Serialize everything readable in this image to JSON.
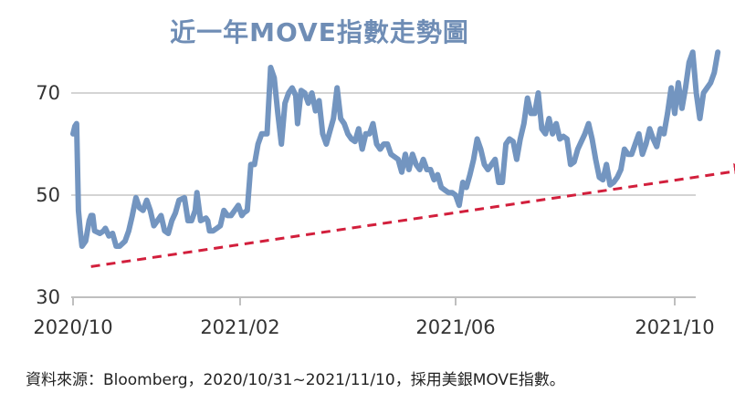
{
  "chart_data": {
    "type": "line",
    "title": "近一年MOVE指數走勢圖",
    "ylim": [
      30,
      78
    ],
    "yticks": [
      30,
      50,
      70
    ],
    "xticks": [
      {
        "label": "2020/10",
        "date": "2020-10-31"
      },
      {
        "label": "2021/02",
        "date": "2021-02-01"
      },
      {
        "label": "2021/06",
        "date": "2021-06-01"
      },
      {
        "label": "2021/10",
        "date": "2021-10-01"
      }
    ],
    "grid": "horizontal",
    "series": [
      {
        "color": "#7395c0",
        "values": [
          [
            "2020-10-31",
            62
          ],
          [
            "2020-11-01",
            63.5
          ],
          [
            "2020-11-02",
            64
          ],
          [
            "2020-11-03",
            47
          ],
          [
            "2020-11-04",
            43
          ],
          [
            "2020-11-05",
            40
          ],
          [
            "2020-11-07",
            41
          ],
          [
            "2020-11-09",
            45
          ],
          [
            "2020-11-10",
            46
          ],
          [
            "2020-11-11",
            46
          ],
          [
            "2020-11-12",
            43
          ],
          [
            "2020-11-15",
            42.5
          ],
          [
            "2020-11-17",
            43
          ],
          [
            "2020-11-18",
            43.5
          ],
          [
            "2020-11-20",
            42
          ],
          [
            "2020-11-22",
            42.5
          ],
          [
            "2020-11-24",
            40
          ],
          [
            "2020-11-26",
            40
          ],
          [
            "2020-11-29",
            41
          ],
          [
            "2020-12-01",
            43
          ],
          [
            "2020-12-03",
            46
          ],
          [
            "2020-12-05",
            49.5
          ],
          [
            "2020-12-07",
            47.5
          ],
          [
            "2020-12-09",
            47
          ],
          [
            "2020-12-11",
            49
          ],
          [
            "2020-12-13",
            47
          ],
          [
            "2020-12-15",
            44
          ],
          [
            "2020-12-17",
            45
          ],
          [
            "2020-12-19",
            46
          ],
          [
            "2020-12-21",
            43
          ],
          [
            "2020-12-23",
            42.5
          ],
          [
            "2020-12-25",
            45
          ],
          [
            "2020-12-27",
            46.5
          ],
          [
            "2020-12-29",
            49
          ],
          [
            "2021-01-01",
            49.5
          ],
          [
            "2021-01-03",
            45
          ],
          [
            "2021-01-05",
            45
          ],
          [
            "2021-01-07",
            47
          ],
          [
            "2021-01-08",
            50.5
          ],
          [
            "2021-01-10",
            45
          ],
          [
            "2021-01-13",
            45.5
          ],
          [
            "2021-01-14",
            45
          ],
          [
            "2021-01-15",
            43
          ],
          [
            "2021-01-17",
            43
          ],
          [
            "2021-01-19",
            43.5
          ],
          [
            "2021-01-21",
            44
          ],
          [
            "2021-01-23",
            47
          ],
          [
            "2021-01-25",
            46
          ],
          [
            "2021-01-27",
            46
          ],
          [
            "2021-01-29",
            47
          ],
          [
            "2021-01-31",
            48
          ],
          [
            "2021-02-02",
            46
          ],
          [
            "2021-02-03",
            46.5
          ],
          [
            "2021-02-05",
            47
          ],
          [
            "2021-02-07",
            56
          ],
          [
            "2021-02-09",
            56
          ],
          [
            "2021-02-11",
            60
          ],
          [
            "2021-02-13",
            62
          ],
          [
            "2021-02-16",
            62
          ],
          [
            "2021-02-18",
            75
          ],
          [
            "2021-02-20",
            73
          ],
          [
            "2021-02-22",
            66
          ],
          [
            "2021-02-24",
            60
          ],
          [
            "2021-02-26",
            68
          ],
          [
            "2021-02-28",
            70
          ],
          [
            "2021-03-02",
            71
          ],
          [
            "2021-03-04",
            69.5
          ],
          [
            "2021-03-05",
            64
          ],
          [
            "2021-03-07",
            70.5
          ],
          [
            "2021-03-09",
            70
          ],
          [
            "2021-03-11",
            68
          ],
          [
            "2021-03-13",
            70
          ],
          [
            "2021-03-15",
            66.5
          ],
          [
            "2021-03-17",
            68.5
          ],
          [
            "2021-03-19",
            62
          ],
          [
            "2021-03-21",
            60
          ],
          [
            "2021-03-23",
            62.5
          ],
          [
            "2021-03-25",
            65
          ],
          [
            "2021-03-27",
            71
          ],
          [
            "2021-03-29",
            65
          ],
          [
            "2021-03-31",
            64
          ],
          [
            "2021-04-02",
            62
          ],
          [
            "2021-04-04",
            61
          ],
          [
            "2021-04-06",
            60.5
          ],
          [
            "2021-04-08",
            63
          ],
          [
            "2021-04-10",
            59
          ],
          [
            "2021-04-12",
            62
          ],
          [
            "2021-04-14",
            62
          ],
          [
            "2021-04-16",
            64
          ],
          [
            "2021-04-18",
            60
          ],
          [
            "2021-04-20",
            59
          ],
          [
            "2021-04-22",
            60
          ],
          [
            "2021-04-24",
            60
          ],
          [
            "2021-04-26",
            58
          ],
          [
            "2021-04-28",
            57.5
          ],
          [
            "2021-04-30",
            57
          ],
          [
            "2021-05-02",
            54.5
          ],
          [
            "2021-05-04",
            58
          ],
          [
            "2021-05-06",
            55
          ],
          [
            "2021-05-08",
            58
          ],
          [
            "2021-05-10",
            56
          ],
          [
            "2021-05-12",
            55
          ],
          [
            "2021-05-14",
            57
          ],
          [
            "2021-05-16",
            55
          ],
          [
            "2021-05-18",
            55
          ],
          [
            "2021-05-20",
            53
          ],
          [
            "2021-05-22",
            54
          ],
          [
            "2021-05-24",
            51.5
          ],
          [
            "2021-05-26",
            51
          ],
          [
            "2021-05-28",
            50.5
          ],
          [
            "2021-05-30",
            50.5
          ],
          [
            "2021-06-01",
            50
          ],
          [
            "2021-06-03",
            48
          ],
          [
            "2021-06-05",
            52.5
          ],
          [
            "2021-06-07",
            51.5
          ],
          [
            "2021-06-09",
            54
          ],
          [
            "2021-06-11",
            57
          ],
          [
            "2021-06-13",
            61
          ],
          [
            "2021-06-15",
            59
          ],
          [
            "2021-06-17",
            56
          ],
          [
            "2021-06-19",
            55
          ],
          [
            "2021-06-21",
            56
          ],
          [
            "2021-06-23",
            57
          ],
          [
            "2021-06-25",
            52.5
          ],
          [
            "2021-06-27",
            52.5
          ],
          [
            "2021-06-29",
            60
          ],
          [
            "2021-07-01",
            61
          ],
          [
            "2021-07-03",
            60.5
          ],
          [
            "2021-07-05",
            57
          ],
          [
            "2021-07-07",
            61
          ],
          [
            "2021-07-09",
            64
          ],
          [
            "2021-07-11",
            69
          ],
          [
            "2021-07-13",
            66
          ],
          [
            "2021-07-15",
            66
          ],
          [
            "2021-07-17",
            70
          ],
          [
            "2021-07-19",
            63
          ],
          [
            "2021-07-21",
            62
          ],
          [
            "2021-07-23",
            65
          ],
          [
            "2021-07-25",
            62
          ],
          [
            "2021-07-27",
            64
          ],
          [
            "2021-07-29",
            61
          ],
          [
            "2021-07-31",
            61.5
          ],
          [
            "2021-08-02",
            61
          ],
          [
            "2021-08-04",
            56
          ],
          [
            "2021-08-06",
            56.5
          ],
          [
            "2021-08-08",
            59
          ],
          [
            "2021-08-10",
            60.5
          ],
          [
            "2021-08-12",
            62
          ],
          [
            "2021-08-14",
            64
          ],
          [
            "2021-08-16",
            61
          ],
          [
            "2021-08-18",
            57
          ],
          [
            "2021-08-20",
            53.5
          ],
          [
            "2021-08-22",
            53
          ],
          [
            "2021-08-24",
            56
          ],
          [
            "2021-08-26",
            52
          ],
          [
            "2021-08-28",
            52.5
          ],
          [
            "2021-08-30",
            53.5
          ],
          [
            "2021-09-01",
            55
          ],
          [
            "2021-09-03",
            59
          ],
          [
            "2021-09-05",
            58
          ],
          [
            "2021-09-07",
            58
          ],
          [
            "2021-09-09",
            60
          ],
          [
            "2021-09-11",
            62
          ],
          [
            "2021-09-13",
            58
          ],
          [
            "2021-09-15",
            60
          ],
          [
            "2021-09-17",
            63
          ],
          [
            "2021-09-19",
            61
          ],
          [
            "2021-09-21",
            59.5
          ],
          [
            "2021-09-23",
            63
          ],
          [
            "2021-09-25",
            62
          ],
          [
            "2021-09-27",
            66
          ],
          [
            "2021-09-29",
            71
          ],
          [
            "2021-10-01",
            66
          ],
          [
            "2021-10-03",
            72
          ],
          [
            "2021-10-05",
            67
          ],
          [
            "2021-10-07",
            71
          ],
          [
            "2021-10-09",
            76
          ],
          [
            "2021-10-11",
            78
          ],
          [
            "2021-10-13",
            70
          ],
          [
            "2021-10-15",
            65
          ],
          [
            "2021-10-17",
            70
          ],
          [
            "2021-10-19",
            71
          ],
          [
            "2021-10-21",
            72
          ],
          [
            "2021-10-23",
            74
          ],
          [
            "2021-10-25",
            78
          ]
        ]
      }
    ],
    "trend_arrow": {
      "color": "#d21f3c",
      "from": [
        "2020-11-10",
        36
      ],
      "to": [
        "2021-11-10",
        55
      ]
    }
  },
  "source_note": "資料來源：Bloomberg，2020/10/31~2021/11/10，採用美銀MOVE指數。"
}
